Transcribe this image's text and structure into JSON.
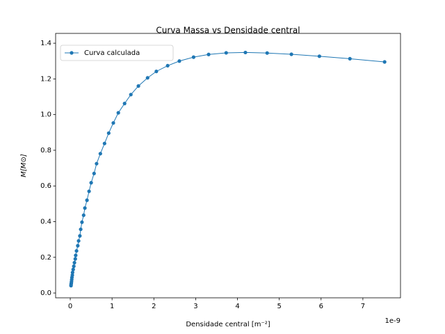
{
  "chart_data": {
    "type": "line",
    "title": "Curva Massa vs Densidade central",
    "x_label": "Densidade central [m⁻²]",
    "y_label": "M[M⊙]",
    "x_offset_text": "1e-9",
    "x": [
      0.018,
      0.02,
      0.025,
      0.03,
      0.035,
      0.04,
      0.05,
      0.055,
      0.07,
      0.085,
      0.1,
      0.12,
      0.13,
      0.15,
      0.18,
      0.2,
      0.23,
      0.25,
      0.28,
      0.32,
      0.35,
      0.4,
      0.45,
      0.5,
      0.57,
      0.63,
      0.72,
      0.82,
      0.92,
      1.03,
      1.15,
      1.3,
      1.45,
      1.63,
      1.85,
      2.06,
      2.33,
      2.61,
      2.95,
      3.31,
      3.73,
      4.19,
      4.71,
      5.29,
      5.96,
      6.69,
      7.52
    ],
    "series": [
      {
        "name": "Curva calculada",
        "color": "#1f77b4",
        "values": [
          0.041,
          0.048,
          0.055,
          0.064,
          0.075,
          0.087,
          0.1,
          0.115,
          0.132,
          0.15,
          0.17,
          0.191,
          0.211,
          0.236,
          0.265,
          0.292,
          0.32,
          0.357,
          0.397,
          0.436,
          0.476,
          0.52,
          0.57,
          0.618,
          0.67,
          0.725,
          0.781,
          0.838,
          0.896,
          0.953,
          1.01,
          1.062,
          1.112,
          1.16,
          1.206,
          1.242,
          1.274,
          1.3,
          1.322,
          1.337,
          1.346,
          1.348,
          1.345,
          1.338,
          1.327,
          1.313,
          1.295
        ]
      }
    ],
    "xlim": [
      -0.35,
      7.9
    ],
    "ylim": [
      -0.027,
      1.455
    ],
    "xticks": [
      0,
      1,
      2,
      3,
      4,
      5,
      6,
      7
    ],
    "yticks": [
      {
        "value": 0,
        "label": "0.0"
      },
      {
        "value": 0.2,
        "label": "0.2"
      },
      {
        "value": 0.4,
        "label": "0.4"
      },
      {
        "value": 0.6,
        "label": "0.6"
      },
      {
        "value": 0.8,
        "label": "0.8"
      },
      {
        "value": 1.0,
        "label": "1.0"
      },
      {
        "value": 1.2,
        "label": "1.2"
      },
      {
        "value": 1.4,
        "label": "1.4"
      }
    ],
    "legend": "upper left",
    "grid": false
  }
}
